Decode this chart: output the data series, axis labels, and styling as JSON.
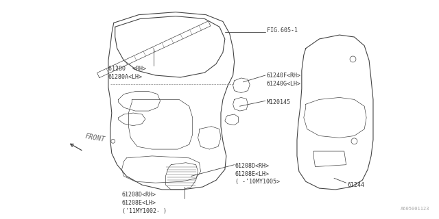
{
  "bg_color": "#ffffff",
  "line_color": "#444444",
  "text_color": "#333333",
  "watermark": "A605001123",
  "labels": {
    "part_61280": "61280  <RH>\n61280A<LH>",
    "part_fig605": "FIG.605-1",
    "part_61240": "61240F<RH>\n61240G<LH>",
    "part_M120145": "M120145",
    "part_61208D_old": "61208D<RH>\n61208E<LH>\n( -'10MY1005>",
    "part_61208D_new": "61208D<RH>\n61208E<LH>\n('11MY1002- )",
    "part_61244": "61244",
    "front_label": "FRONT"
  },
  "font_size": 6.0,
  "lw_main": 0.8,
  "lw_thin": 0.5
}
